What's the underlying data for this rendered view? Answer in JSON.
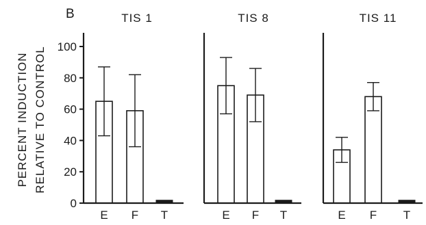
{
  "panel_letter": "B",
  "ylabel_line1": "PERCENT INDUCTION",
  "ylabel_line2": "RELATIVE TO CONTROL",
  "colors": {
    "ink": "#1a1a1a",
    "background": "#ffffff"
  },
  "chart_data": [
    {
      "type": "bar",
      "title": "TIS 1",
      "categories": [
        "E",
        "F",
        "T"
      ],
      "values": [
        65,
        59,
        1
      ],
      "error": [
        22,
        23,
        0
      ],
      "ylim": [
        0,
        100
      ],
      "yticks": [
        0,
        20,
        40,
        60,
        80,
        100
      ],
      "grid": false
    },
    {
      "type": "bar",
      "title": "TIS 8",
      "categories": [
        "E",
        "F",
        "T"
      ],
      "values": [
        75,
        69,
        1
      ],
      "error": [
        18,
        17,
        0
      ],
      "ylim": [
        0,
        100
      ],
      "grid": false
    },
    {
      "type": "bar",
      "title": "TIS 11",
      "categories": [
        "E",
        "F",
        "T"
      ],
      "values": [
        34,
        68,
        1
      ],
      "error": [
        8,
        9,
        0
      ],
      "ylim": [
        0,
        100
      ],
      "grid": false
    }
  ]
}
